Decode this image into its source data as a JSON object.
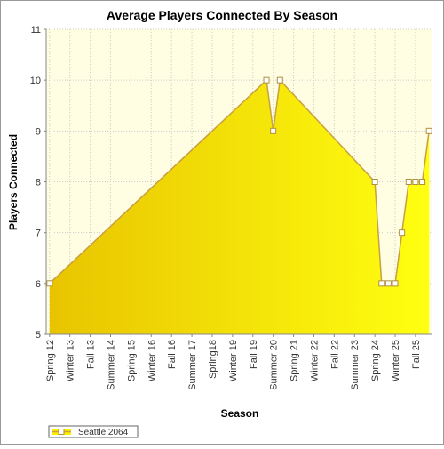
{
  "chart_data": {
    "type": "area",
    "title": "Average Players Connected By Season",
    "x_label": "Season",
    "y_label": "Players Connected",
    "categories": [
      "Spring 12",
      null,
      null,
      "Winter 13",
      null,
      null,
      "Fall 13",
      null,
      null,
      "Summer 14",
      null,
      null,
      "Spring 15",
      null,
      null,
      "Winter 16",
      null,
      null,
      "Fall 16",
      null,
      null,
      "Summer 17",
      null,
      null,
      "Spring18",
      null,
      null,
      "Winter 19",
      null,
      null,
      "Fall 19",
      null,
      null,
      "Summer 20",
      null,
      null,
      "Spring 21",
      null,
      null,
      "Winter 22",
      null,
      null,
      "Fall 22",
      null,
      null,
      "Summer 23",
      null,
      null,
      "Spring 24",
      null,
      null,
      "Winter 25",
      null,
      null,
      "Fall 25",
      null,
      null
    ],
    "series": [
      {
        "name": "Seattle 2064",
        "color": "#ffee00",
        "values": [
          6,
          null,
          null,
          null,
          null,
          null,
          null,
          null,
          null,
          null,
          null,
          null,
          null,
          null,
          null,
          null,
          null,
          null,
          null,
          null,
          null,
          null,
          null,
          null,
          null,
          null,
          null,
          null,
          null,
          null,
          null,
          null,
          10,
          9,
          10,
          null,
          null,
          null,
          null,
          null,
          null,
          null,
          null,
          null,
          null,
          null,
          null,
          null,
          8,
          6,
          6,
          6,
          7,
          8,
          8,
          8,
          9
        ]
      }
    ],
    "ylim": [
      5,
      11
    ],
    "yticks": [
      5,
      6,
      7,
      8,
      9,
      10,
      11
    ],
    "grid": true,
    "legend": "bottom-left"
  }
}
